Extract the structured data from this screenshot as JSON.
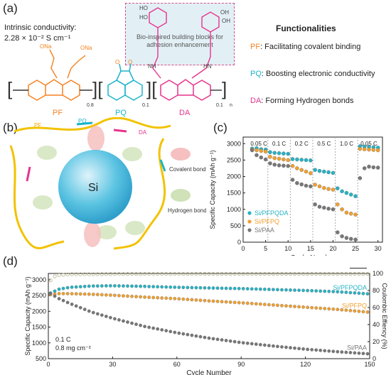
{
  "panels": {
    "a": {
      "label": "(a)",
      "conductivity_title": "Intrinsic conductivity:",
      "conductivity_value": "2.28 × 10⁻² S cm⁻¹",
      "bio_box": "Bio-inspired building blocks for adhesion enhancement",
      "functionalities_title": "Functionalities",
      "functions": [
        {
          "abbr": "PF",
          "text": ": Facilitating covalent binding",
          "color": "#f58220"
        },
        {
          "abbr": "PQ",
          "text": ": Boosting electronic conductivity",
          "color": "#1bb5c9"
        },
        {
          "abbr": "DA",
          "text": ": Forming Hydrogen bonds",
          "color": "#e6348c"
        }
      ],
      "structure_labels": {
        "pf": "PF",
        "pq": "PQ",
        "da": "DA",
        "sub_pf": "0.8",
        "sub_pq": "0.1",
        "sub_da": "0.1",
        "sub_n": "n",
        "ona1": "ONa",
        "ona2": "O",
        "ona3": "ONa",
        "nh": "NH",
        "hn": "HN",
        "ho1": "HO",
        "ho2": "HO",
        "ho3": "OH",
        "ho4": "OH"
      }
    },
    "b": {
      "label": "(b)",
      "si": "Si",
      "pf": "PF",
      "pq": "PQ",
      "da": "DA",
      "covalent": "Covalent bond",
      "hydrogen": "Hydrogen bond"
    },
    "c": {
      "label": "(c)"
    },
    "d": {
      "label": "(d)"
    }
  },
  "chart_data": [
    {
      "id": "c",
      "type": "scatter",
      "xlabel": "Cycle Number",
      "ylabel": "Specific Capacity (mAh g⁻¹)",
      "xlim": [
        0,
        31
      ],
      "ylim": [
        0,
        3200
      ],
      "xticks": [
        0,
        5,
        10,
        15,
        20,
        25,
        30
      ],
      "yticks": [
        0,
        500,
        1000,
        1500,
        2000,
        2500,
        3000
      ],
      "rate_labels": [
        "0.05 C",
        "0.1 C",
        "0.2 C",
        "0.5 C",
        "1.0 C",
        "0.05 C"
      ],
      "legend": [
        "Si/PFPQDA",
        "Si/PFPQ",
        "Si/PAA"
      ],
      "series": [
        {
          "name": "Si/PFPQDA",
          "color": "#26b3c5",
          "x": [
            2,
            3,
            4,
            5,
            6,
            7,
            8,
            9,
            10,
            11,
            12,
            13,
            14,
            15,
            16,
            17,
            18,
            19,
            20,
            21,
            22,
            23,
            24,
            25,
            26,
            27,
            28,
            29,
            30
          ],
          "y": [
            2850,
            2860,
            2830,
            2820,
            2740,
            2720,
            2710,
            2700,
            2690,
            2530,
            2520,
            2510,
            2500,
            2490,
            2200,
            2170,
            2150,
            2130,
            2110,
            1640,
            1550,
            1500,
            1450,
            1400,
            2920,
            2910,
            2900,
            2890,
            2880
          ]
        },
        {
          "name": "Si/PFPQ",
          "color": "#f0a030",
          "x": [
            2,
            3,
            4,
            5,
            6,
            7,
            8,
            9,
            10,
            11,
            12,
            13,
            14,
            15,
            16,
            17,
            18,
            19,
            20,
            21,
            22,
            23,
            24,
            25,
            26,
            27,
            28,
            29,
            30
          ],
          "y": [
            2820,
            2800,
            2780,
            2760,
            2600,
            2560,
            2540,
            2520,
            2500,
            2320,
            2250,
            2200,
            2150,
            2100,
            1750,
            1700,
            1650,
            1620,
            1600,
            1150,
            1000,
            900,
            870,
            840,
            2840,
            2830,
            2820,
            2810,
            2800
          ]
        },
        {
          "name": "Si/PAA",
          "color": "#777777",
          "x": [
            2,
            3,
            4,
            5,
            6,
            7,
            8,
            9,
            10,
            11,
            12,
            13,
            14,
            15,
            16,
            17,
            18,
            19,
            20,
            21,
            22,
            23,
            24,
            25,
            26,
            27,
            28,
            29,
            30
          ],
          "y": [
            2800,
            2650,
            2580,
            2520,
            2400,
            2360,
            2340,
            2330,
            2320,
            1900,
            1800,
            1760,
            1720,
            1700,
            1150,
            1080,
            1050,
            1020,
            1000,
            300,
            180,
            130,
            100,
            80,
            1950,
            2250,
            2300,
            2280,
            2270
          ]
        }
      ]
    },
    {
      "id": "d",
      "type": "scatter",
      "xlabel": "Cycle Number",
      "ylabel": "Specific Capacity (mAh g⁻¹)",
      "y2label": "Coulombic Effiency (%)",
      "xlim": [
        0,
        150
      ],
      "ylim": [
        500,
        3200
      ],
      "y2lim": [
        0,
        100
      ],
      "xticks": [
        0,
        30,
        60,
        90,
        120,
        150
      ],
      "yticks": [
        500,
        1000,
        1500,
        2000,
        2500,
        3000
      ],
      "y2ticks": [
        0,
        20,
        40,
        60,
        80,
        100
      ],
      "annotations": [
        "0.1 C",
        "0.8 mg cm⁻²"
      ],
      "series": [
        {
          "name": "Si/PFPQDA",
          "color": "#26b3c5",
          "x": [
            0,
            5,
            10,
            20,
            30,
            45,
            60,
            75,
            90,
            105,
            120,
            135,
            150
          ],
          "y": [
            2550,
            2700,
            2760,
            2800,
            2810,
            2790,
            2760,
            2740,
            2720,
            2690,
            2660,
            2620,
            2550
          ]
        },
        {
          "name": "Si/PFPQ",
          "color": "#f0a030",
          "x": [
            0,
            5,
            10,
            20,
            30,
            45,
            60,
            75,
            90,
            105,
            120,
            135,
            150
          ],
          "y": [
            2520,
            2560,
            2560,
            2540,
            2510,
            2450,
            2400,
            2330,
            2270,
            2200,
            2130,
            2060,
            1970
          ]
        },
        {
          "name": "Si/PAA",
          "color": "#777777",
          "x": [
            0,
            5,
            10,
            20,
            30,
            45,
            60,
            75,
            90,
            105,
            120,
            135,
            150
          ],
          "y": [
            2600,
            2400,
            2250,
            1980,
            1780,
            1520,
            1320,
            1150,
            1010,
            900,
            800,
            720,
            650
          ]
        },
        {
          "name": "CE",
          "color": "#b5b08a",
          "axis": "y2",
          "x": [
            0,
            2,
            5,
            10,
            20,
            30,
            45,
            60,
            75,
            90,
            105,
            120,
            135,
            150
          ],
          "y": [
            88,
            96,
            98,
            99,
            99,
            99.3,
            99.4,
            99.4,
            99.5,
            99.5,
            99.5,
            99.5,
            99.5,
            99.5
          ]
        }
      ]
    }
  ]
}
